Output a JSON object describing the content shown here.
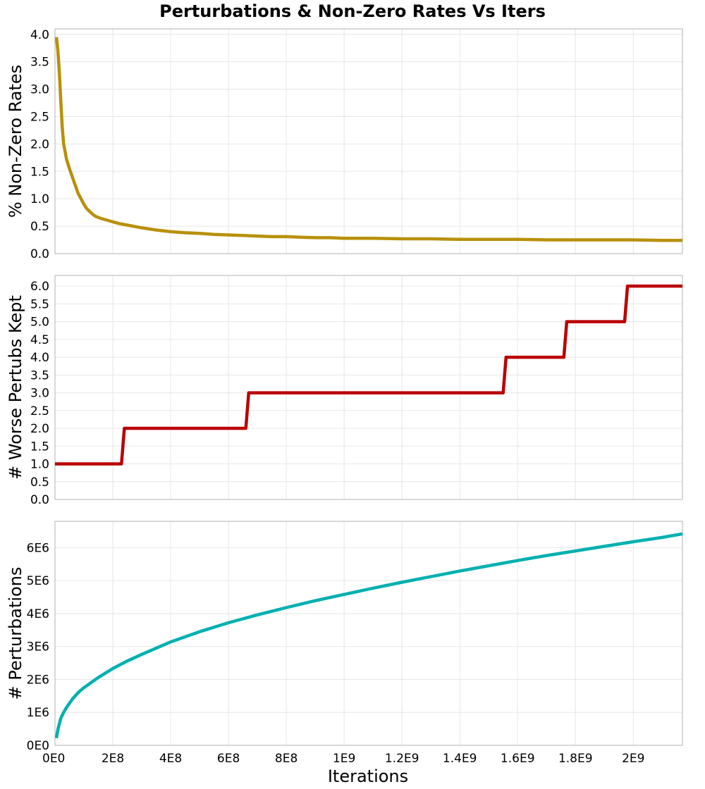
{
  "title": "Perturbations & Non-Zero Rates Vs Iters",
  "xlabel": "Iterations",
  "chart_data": [
    {
      "type": "line",
      "ylabel": "% Non-Zero Rates",
      "xlim": [
        0,
        2170000000
      ],
      "ylim": [
        0,
        4.1
      ],
      "x_ticks": [
        0,
        200000000,
        400000000,
        600000000,
        800000000,
        1000000000,
        1200000000,
        1400000000,
        1600000000,
        1800000000,
        2000000000
      ],
      "y_ticks": [
        0,
        0.5,
        1.0,
        1.5,
        2.0,
        2.5,
        3.0,
        3.5,
        4.0
      ],
      "y_tick_labels": [
        "0.0",
        "0.5",
        "1.0",
        "1.5",
        "2.0",
        "2.5",
        "3.0",
        "3.5",
        "4.0"
      ],
      "grid": true,
      "series": [
        {
          "color": "#b8900a",
          "x": [
            5000000,
            10000000,
            15000000,
            20000000,
            25000000,
            30000000,
            40000000,
            50000000,
            60000000,
            70000000,
            80000000,
            90000000,
            100000000,
            110000000,
            120000000,
            130000000,
            140000000,
            160000000,
            180000000,
            200000000,
            220000000,
            250000000,
            300000000,
            350000000,
            400000000,
            450000000,
            500000000,
            550000000,
            600000000,
            650000000,
            700000000,
            750000000,
            800000000,
            850000000,
            900000000,
            950000000,
            1000000000,
            1100000000,
            1200000000,
            1300000000,
            1400000000,
            1500000000,
            1600000000,
            1700000000,
            1800000000,
            1900000000,
            2000000000,
            2100000000,
            2170000000
          ],
          "y": [
            3.95,
            3.7,
            3.3,
            2.8,
            2.3,
            2.0,
            1.72,
            1.55,
            1.4,
            1.25,
            1.1,
            1.0,
            0.9,
            0.82,
            0.77,
            0.72,
            0.68,
            0.64,
            0.61,
            0.58,
            0.55,
            0.52,
            0.47,
            0.43,
            0.4,
            0.38,
            0.37,
            0.35,
            0.34,
            0.33,
            0.32,
            0.31,
            0.31,
            0.3,
            0.29,
            0.29,
            0.28,
            0.28,
            0.27,
            0.27,
            0.26,
            0.26,
            0.26,
            0.25,
            0.25,
            0.25,
            0.25,
            0.24,
            0.24
          ]
        }
      ]
    },
    {
      "type": "line",
      "ylabel": "# Worse Pertubs Kept",
      "xlim": [
        0,
        2170000000
      ],
      "ylim": [
        0,
        6.3
      ],
      "x_ticks": [
        0,
        200000000,
        400000000,
        600000000,
        800000000,
        1000000000,
        1200000000,
        1400000000,
        1600000000,
        1800000000,
        2000000000
      ],
      "y_ticks": [
        0,
        0.5,
        1.0,
        1.5,
        2.0,
        2.5,
        3.0,
        3.5,
        4.0,
        4.5,
        5.0,
        5.5,
        6.0
      ],
      "y_tick_labels": [
        "0.0",
        "0.5",
        "1.0",
        "1.5",
        "2.0",
        "2.5",
        "3.0",
        "3.5",
        "4.0",
        "4.5",
        "5.0",
        "5.5",
        "6.0"
      ],
      "grid": true,
      "series": [
        {
          "color": "#bb0000",
          "x": [
            0,
            230000000,
            240000000,
            660000000,
            670000000,
            1550000000,
            1560000000,
            1760000000,
            1770000000,
            1970000000,
            1980000000,
            2170000000
          ],
          "y": [
            1,
            1,
            2,
            2,
            3,
            3,
            4,
            4,
            5,
            5,
            6,
            6
          ]
        }
      ]
    },
    {
      "type": "line",
      "ylabel": "# Perturbations",
      "xlim": [
        0,
        2170000000
      ],
      "ylim": [
        0,
        6800000
      ],
      "x_ticks": [
        0,
        200000000,
        400000000,
        600000000,
        800000000,
        1000000000,
        1200000000,
        1400000000,
        1600000000,
        1800000000,
        2000000000
      ],
      "x_tick_labels": [
        "0E0",
        "2E8",
        "4E8",
        "6E8",
        "8E8",
        "1E9",
        "1.2E9",
        "1.4E9",
        "1.6E9",
        "1.8E9",
        "2E9"
      ],
      "y_ticks": [
        0,
        1000000,
        2000000,
        3000000,
        4000000,
        5000000,
        6000000
      ],
      "y_tick_labels": [
        "0E0",
        "1E6",
        "2E6",
        "3E6",
        "4E6",
        "5E6",
        "6E6"
      ],
      "grid": true,
      "series": [
        {
          "color": "#00b0b0",
          "x": [
            5000000,
            10000000,
            20000000,
            30000000,
            40000000,
            60000000,
            80000000,
            100000000,
            150000000,
            200000000,
            250000000,
            300000000,
            400000000,
            500000000,
            600000000,
            700000000,
            800000000,
            900000000,
            1000000000,
            1100000000,
            1200000000,
            1300000000,
            1400000000,
            1500000000,
            1600000000,
            1700000000,
            1800000000,
            1900000000,
            2000000000,
            2100000000,
            2170000000
          ],
          "y": [
            220000,
            480000,
            820000,
            1000000,
            1150000,
            1400000,
            1600000,
            1750000,
            2060000,
            2330000,
            2560000,
            2760000,
            3140000,
            3450000,
            3720000,
            3960000,
            4180000,
            4390000,
            4580000,
            4770000,
            4950000,
            5120000,
            5290000,
            5450000,
            5610000,
            5760000,
            5900000,
            6040000,
            6180000,
            6310000,
            6420000
          ]
        }
      ]
    }
  ]
}
